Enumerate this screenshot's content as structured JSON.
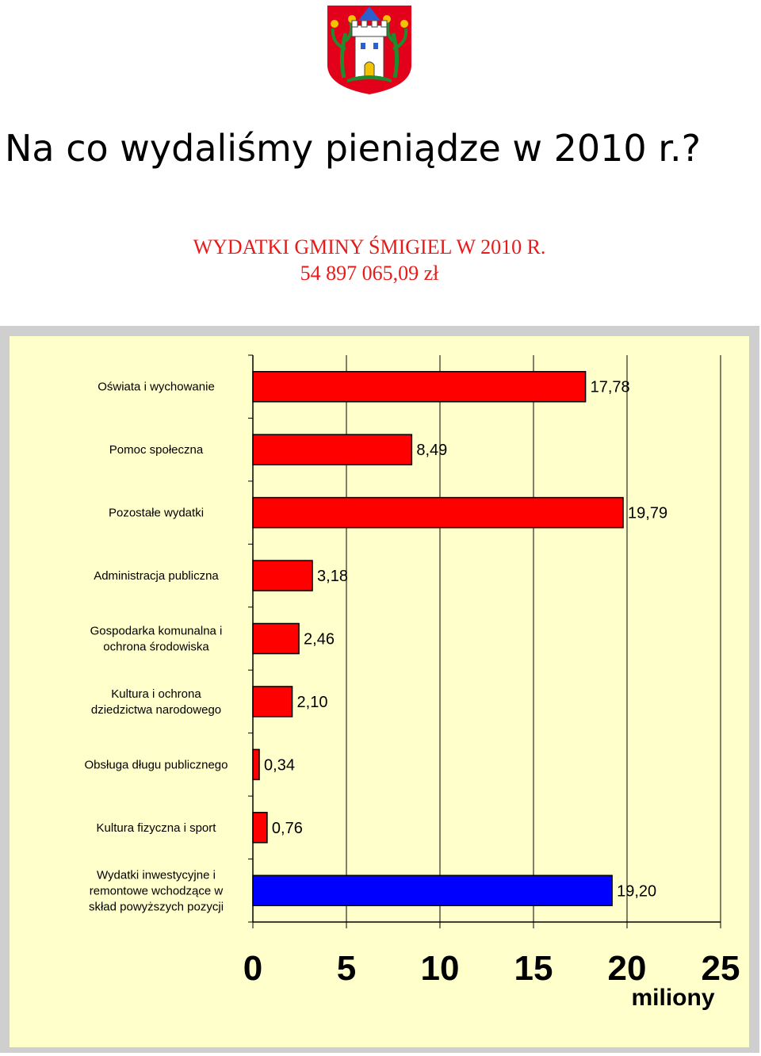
{
  "header": {
    "headline": "Na co wydaliśmy pieniądze w 2010 r.?"
  },
  "colors": {
    "crest_red": "#e2001a",
    "title_red": "#e81a1a",
    "bar_red": "#ff0000",
    "bar_blue": "#0000ff",
    "plot_bg": "#ffffcc"
  },
  "chart_data": {
    "type": "bar",
    "orientation": "horizontal",
    "title": "WYDATKI GMINY ŚMIGIEL W 2010 R.",
    "subtitle": "54 897 065,09 zł",
    "xlabel": "miliony",
    "ylabel": "",
    "xlim": [
      0,
      25
    ],
    "xticks": [
      "0",
      "5",
      "10",
      "15",
      "20",
      "25"
    ],
    "grid": true,
    "categories": [
      [
        "Oświata i wychowanie"
      ],
      [
        "Pomoc społeczna"
      ],
      [
        "Pozostałe wydatki"
      ],
      [
        "Administracja publiczna"
      ],
      [
        "Gospodarka komunalna i",
        "ochrona środowiska"
      ],
      [
        "Kultura i ochrona",
        "dziedzictwa narodowego"
      ],
      [
        "Obsługa długu publicznego"
      ],
      [
        "Kultura fizyczna i sport"
      ],
      [
        "Wydatki inwestycyjne i",
        "remontowe wchodzące w",
        "skład powyższych pozycji"
      ]
    ],
    "values": [
      17.78,
      8.49,
      19.79,
      3.18,
      2.46,
      2.1,
      0.34,
      0.76,
      19.2
    ],
    "value_labels": [
      "17,78",
      "8,49",
      "19,79",
      "3,18",
      "2,46",
      "2,10",
      "0,34",
      "0,76",
      "19,20"
    ],
    "bar_colors": [
      "#ff0000",
      "#ff0000",
      "#ff0000",
      "#ff0000",
      "#ff0000",
      "#ff0000",
      "#ff0000",
      "#ff0000",
      "#0000ff"
    ]
  }
}
